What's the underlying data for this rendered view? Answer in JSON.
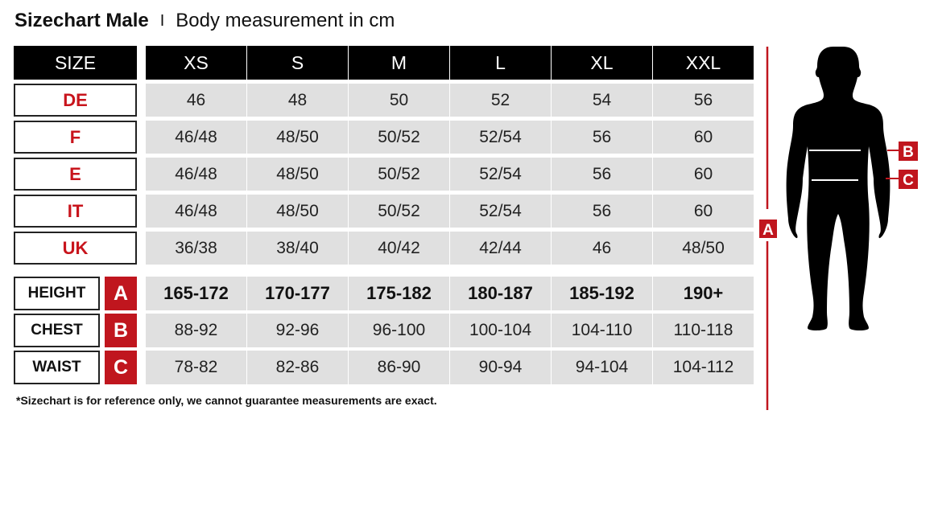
{
  "title": {
    "bold": "Sizechart Male",
    "separator": "I",
    "subtitle": "Body measurement in cm"
  },
  "header": {
    "label": "SIZE",
    "sizes": [
      "XS",
      "S",
      "M",
      "L",
      "XL",
      "XXL"
    ]
  },
  "size_rows": [
    {
      "label": "DE",
      "values": [
        "46",
        "48",
        "50",
        "52",
        "54",
        "56"
      ]
    },
    {
      "label": "F",
      "values": [
        "46/48",
        "48/50",
        "50/52",
        "52/54",
        "56",
        "60"
      ]
    },
    {
      "label": "E",
      "values": [
        "46/48",
        "48/50",
        "50/52",
        "52/54",
        "56",
        "60"
      ]
    },
    {
      "label": "IT",
      "values": [
        "46/48",
        "48/50",
        "50/52",
        "52/54",
        "56",
        "60"
      ]
    },
    {
      "label": "UK",
      "values": [
        "36/38",
        "38/40",
        "40/42",
        "42/44",
        "46",
        "48/50"
      ]
    }
  ],
  "measure_rows": [
    {
      "label": "HEIGHT",
      "letter": "A",
      "values": [
        "165-172",
        "170-177",
        "175-182",
        "180-187",
        "185-192",
        "190+"
      ]
    },
    {
      "label": "CHEST",
      "letter": "B",
      "values": [
        "88-92",
        "92-96",
        "96-100",
        "100-104",
        "104-110",
        "110-118"
      ]
    },
    {
      "label": "WAIST",
      "letter": "C",
      "values": [
        "78-82",
        "82-86",
        "86-90",
        "90-94",
        "94-104",
        "104-112"
      ]
    }
  ],
  "footnote": "*Sizechart is for reference only, we cannot guarantee measurements are exact.",
  "figure": {
    "height_letter": "A",
    "chest_letter": "B",
    "waist_letter": "C"
  },
  "colors": {
    "accent": "#c0161e",
    "header": "#000000",
    "cell": "#e0e0e0"
  }
}
